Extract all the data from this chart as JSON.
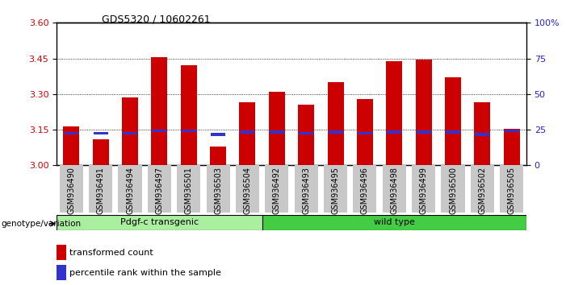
{
  "title": "GDS5320 / 10602261",
  "samples": [
    "GSM936490",
    "GSM936491",
    "GSM936494",
    "GSM936497",
    "GSM936501",
    "GSM936503",
    "GSM936504",
    "GSM936492",
    "GSM936493",
    "GSM936495",
    "GSM936496",
    "GSM936498",
    "GSM936499",
    "GSM936500",
    "GSM936502",
    "GSM936505"
  ],
  "red_values": [
    3.165,
    3.11,
    3.285,
    3.455,
    3.42,
    3.08,
    3.265,
    3.31,
    3.255,
    3.35,
    3.28,
    3.44,
    3.445,
    3.37,
    3.265,
    3.155
  ],
  "blue_values": [
    3.135,
    3.135,
    3.135,
    3.145,
    3.145,
    3.13,
    3.14,
    3.14,
    3.135,
    3.14,
    3.135,
    3.14,
    3.14,
    3.14,
    3.13,
    3.145
  ],
  "y_min": 3.0,
  "y_max": 3.6,
  "y_ticks_left": [
    3.0,
    3.15,
    3.3,
    3.45,
    3.6
  ],
  "y2_ticks": [
    0,
    25,
    50,
    75,
    100
  ],
  "grid_values": [
    3.15,
    3.3,
    3.45
  ],
  "group1_label": "Pdgf-c transgenic",
  "group1_count": 7,
  "group2_label": "wild type",
  "group2_count": 9,
  "group_label": "genotype/variation",
  "legend_red": "transformed count",
  "legend_blue": "percentile rank within the sample",
  "bar_color": "#CC0000",
  "blue_color": "#3333CC",
  "bar_width": 0.55,
  "group1_bg": "#AAEEA0",
  "group2_bg": "#44CC44",
  "tick_bg": "#C8C8C8",
  "left_tick_color": "#CC0000",
  "right_tick_color": "#2222CC"
}
